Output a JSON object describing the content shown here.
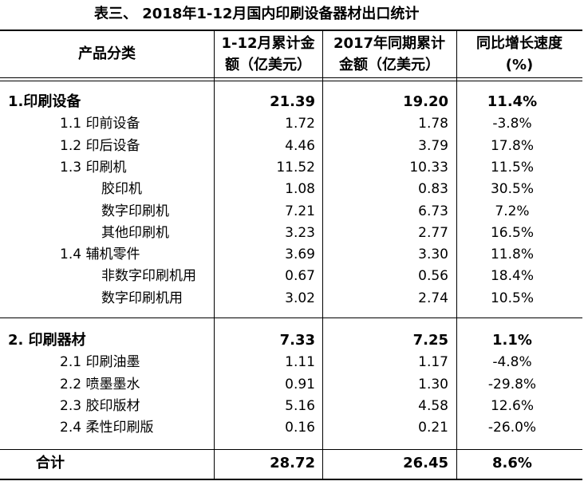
{
  "title": "表三、 2018年1-12月国内印刷设备器材出口统计",
  "table": {
    "header": [
      [
        "产品分类"
      ],
      [
        "1-12月累计金",
        "额（亿美元）"
      ],
      [
        "2017年同期累计",
        "金额（亿美元）"
      ],
      [
        "同比增长速度",
        "(%)"
      ]
    ],
    "sections": [
      {
        "rows": [
          [
            "1.印刷设备",
            "21.39",
            "19.20",
            "11.4%"
          ],
          [
            "1.1 印前设备",
            "1.72",
            "1.78",
            "-3.8%"
          ],
          [
            "1.2 印后设备",
            "4.46",
            "3.79",
            "17.8%"
          ],
          [
            "1.3 印刷机",
            "11.52",
            "10.33",
            "11.5%"
          ],
          [
            "胶印机",
            "1.08",
            "0.83",
            "30.5%"
          ],
          [
            "数字印刷机",
            "7.21",
            "6.73",
            "7.2%"
          ],
          [
            "其他印刷机",
            "3.23",
            "2.77",
            "16.5%"
          ],
          [
            "1.4  辅机零件",
            "3.69",
            "3.30",
            "11.8%"
          ],
          [
            "非数字印刷机用",
            "0.67",
            "0.56",
            "18.4%"
          ],
          [
            "数字印刷机用",
            "3.02",
            "2.74",
            "10.5%"
          ]
        ]
      },
      {
        "rows": [
          [
            "2. 印刷器材",
            "7.33",
            "7.25",
            "1.1%"
          ],
          [
            "2.1 印刷油墨",
            "1.11",
            "1.17",
            "-4.8%"
          ],
          [
            "2.2 喷墨墨水",
            "0.91",
            "1.30",
            "-29.8%"
          ],
          [
            "2.3 胶印版材",
            "5.16",
            "4.58",
            "12.6%"
          ],
          [
            "2.4 柔性印刷版",
            "0.16",
            "0.21",
            "-26.0%"
          ]
        ]
      },
      {
        "rows": [
          [
            "合计",
            "28.72",
            "26.45",
            "8.6%"
          ]
        ]
      }
    ]
  }
}
